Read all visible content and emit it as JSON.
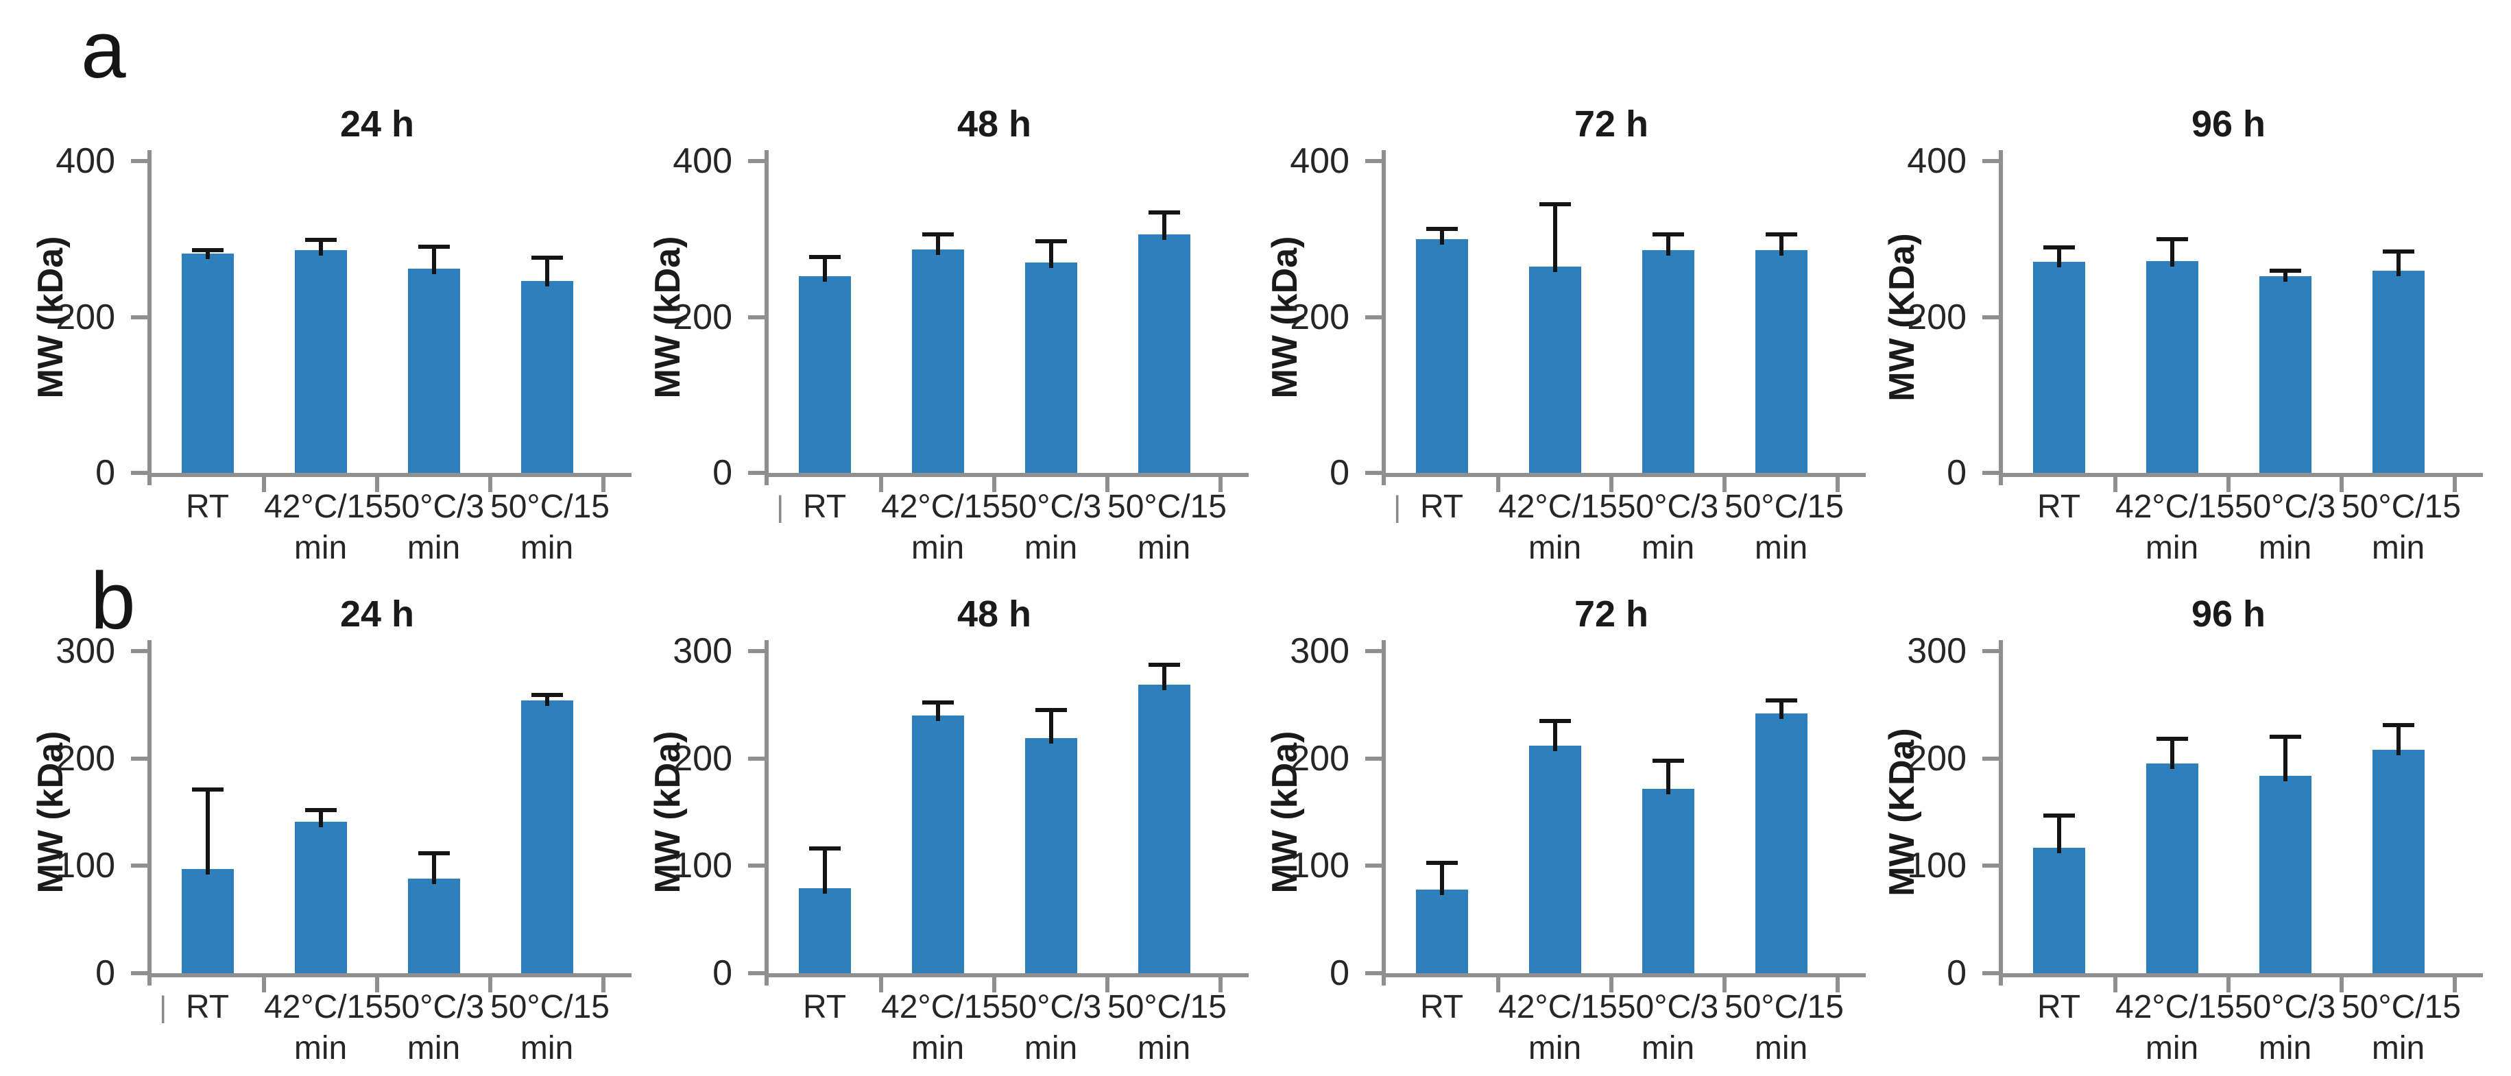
{
  "figure": {
    "panel_a_label": "a",
    "panel_b_label": "b",
    "bar_color": "#2E80BD",
    "axis_color": "#8F8F8F",
    "error_bar_color": "#141414",
    "text_color": "#262626",
    "leading_tick_glyph": "|"
  },
  "chart_data": [
    {
      "type": "bar",
      "panel": "a",
      "title": "24 h",
      "ylabel": "MW (kDa)",
      "xlabel": "",
      "ylim": [
        0,
        400
      ],
      "yticks": [
        0,
        200,
        400
      ],
      "categories": [
        "RT",
        "42°C/15 min",
        "50°C/3 min",
        "50°C/15 min"
      ],
      "values": [
        281,
        286,
        262,
        246
      ],
      "error_top": [
        286,
        299,
        290,
        276
      ],
      "leading_tick": false,
      "grid": false,
      "legend": "none"
    },
    {
      "type": "bar",
      "panel": "a",
      "title": "48 h",
      "ylabel": "MW (kDa)",
      "xlabel": "",
      "ylim": [
        0,
        400
      ],
      "yticks": [
        0,
        200,
        400
      ],
      "categories": [
        "RT",
        "42°C/15 min",
        "50°C/3 min",
        "50°C/15 min"
      ],
      "values": [
        252,
        287,
        270,
        306
      ],
      "error_top": [
        277,
        306,
        297,
        334
      ],
      "leading_tick": true,
      "grid": false,
      "legend": "none"
    },
    {
      "type": "bar",
      "panel": "a",
      "title": "72 h",
      "ylabel": "MW (kDa)",
      "xlabel": "",
      "ylim": [
        0,
        400
      ],
      "yticks": [
        0,
        200,
        400
      ],
      "categories": [
        "RT",
        "42°C/15 min",
        "50°C/3 min",
        "50°C/15 min"
      ],
      "values": [
        300,
        265,
        286,
        286
      ],
      "error_top": [
        313,
        345,
        306,
        306
      ],
      "leading_tick": true,
      "grid": false,
      "legend": "none"
    },
    {
      "type": "bar",
      "panel": "a",
      "title": "96 h",
      "ylabel": "MW (KDa)",
      "xlabel": "",
      "ylim": [
        0,
        400
      ],
      "yticks": [
        0,
        200,
        400
      ],
      "categories": [
        "RT",
        "42°C/15 min",
        "50°C/3 min",
        "50°C/15 min"
      ],
      "values": [
        271,
        272,
        252,
        259
      ],
      "error_top": [
        289,
        300,
        259,
        284
      ],
      "leading_tick": false,
      "grid": false,
      "legend": "none"
    },
    {
      "type": "bar",
      "panel": "b",
      "title": "24 h",
      "ylabel": "MW (kDa)",
      "xlabel": "",
      "ylim": [
        0,
        300
      ],
      "yticks": [
        0,
        100,
        200,
        300
      ],
      "categories": [
        "RT",
        "42°C/15 min",
        "50°C/3 min",
        "50°C/15 min"
      ],
      "values": [
        97,
        141,
        88,
        254
      ],
      "error_top": [
        171,
        152,
        112,
        259
      ],
      "leading_tick": true,
      "grid": false,
      "legend": "none"
    },
    {
      "type": "bar",
      "panel": "b",
      "title": "48 h",
      "ylabel": "MW (kDa)",
      "xlabel": "",
      "ylim": [
        0,
        300
      ],
      "yticks": [
        0,
        100,
        200,
        300
      ],
      "categories": [
        "RT",
        "42°C/15 min",
        "50°C/3 min",
        "50°C/15 min"
      ],
      "values": [
        79,
        240,
        219,
        269
      ],
      "error_top": [
        116,
        252,
        245,
        287
      ],
      "leading_tick": false,
      "grid": false,
      "legend": "none"
    },
    {
      "type": "bar",
      "panel": "b",
      "title": "72 h",
      "ylabel": "MW (kDa)",
      "xlabel": "",
      "ylim": [
        0,
        300
      ],
      "yticks": [
        0,
        100,
        200,
        300
      ],
      "categories": [
        "RT",
        "42°C/15 min",
        "50°C/3 min",
        "50°C/15 min"
      ],
      "values": [
        78,
        212,
        172,
        242
      ],
      "error_top": [
        103,
        235,
        198,
        254
      ],
      "leading_tick": false,
      "grid": false,
      "legend": "none"
    },
    {
      "type": "bar",
      "panel": "b",
      "title": "96 h",
      "ylabel": "MW (KDa)",
      "xlabel": "",
      "ylim": [
        0,
        300
      ],
      "yticks": [
        0,
        100,
        200,
        300
      ],
      "categories": [
        "RT",
        "42°C/15 min",
        "50°C/3 min",
        "50°C/15 min"
      ],
      "values": [
        117,
        195,
        184,
        208
      ],
      "error_top": [
        147,
        218,
        220,
        231
      ],
      "leading_tick": false,
      "grid": false,
      "legend": "none"
    }
  ]
}
